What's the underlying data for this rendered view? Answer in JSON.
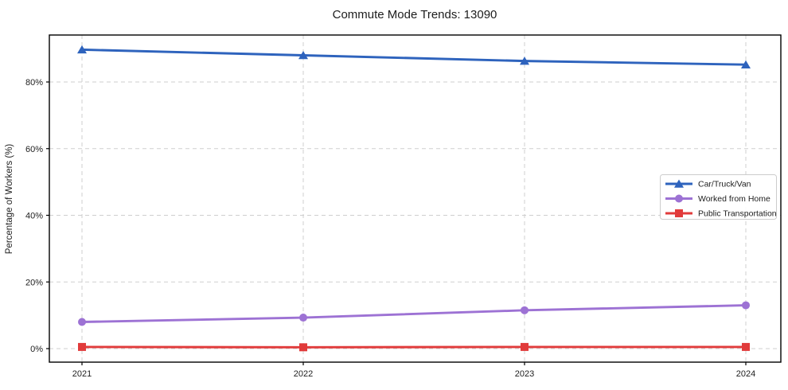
{
  "chart_data": {
    "type": "line",
    "title": "Commute Mode Trends: 13090",
    "xlabel": "",
    "ylabel": "Percentage of Workers (%)",
    "x": [
      "2021",
      "2022",
      "2023",
      "2024"
    ],
    "yticks": [
      0,
      20,
      40,
      60,
      80
    ],
    "ytick_labels": [
      "0%",
      "20%",
      "40%",
      "60%",
      "80%"
    ],
    "ylim": [
      -4.1,
      94.1
    ],
    "grid": "dashed both axes",
    "legend_position": "center right",
    "series": [
      {
        "name": "Car/Truck/Van",
        "marker": "triangle",
        "color": "#2e63bd",
        "values": [
          89.7,
          88.0,
          86.3,
          85.2
        ]
      },
      {
        "name": "Worked from Home",
        "marker": "circle",
        "color": "#9d72d4",
        "values": [
          8.0,
          9.3,
          11.5,
          13.0
        ]
      },
      {
        "name": "Public Transportation",
        "marker": "square",
        "color": "#e13b3b",
        "values": [
          0.5,
          0.4,
          0.5,
          0.5
        ]
      }
    ]
  },
  "style_colors": {
    "grid": "#cfcfcf",
    "frame": "#000000",
    "background": "#ffffff",
    "legend_border": "#cccccc"
  }
}
